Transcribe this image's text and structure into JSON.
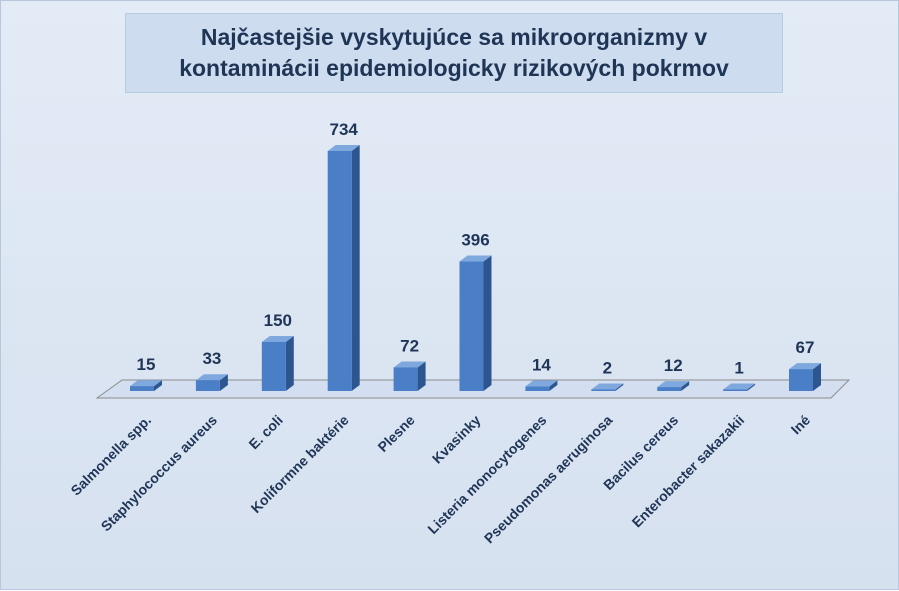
{
  "chart_data": {
    "type": "bar",
    "title_lines": [
      "Najčastejšie vyskytujúce sa mikroorganizmy  v",
      "kontaminácii epidemiologicky rizikových pokrmov"
    ],
    "categories": [
      "Salmonella spp.",
      "Staphylococcus aureus",
      "E. coli",
      "Koliformne baktérie",
      "Plesne",
      "Kvasinky",
      "Listeria monocytogenes",
      "Pseudomonas aeruginosa",
      "Bacilus cereus",
      "Enterobacter sakazakii",
      "Iné"
    ],
    "values": [
      15,
      33,
      150,
      734,
      72,
      396,
      14,
      2,
      12,
      1,
      67
    ],
    "data_labels": [
      "15",
      "33",
      "150",
      "734",
      "72",
      "396",
      "14",
      "2",
      "12",
      "1",
      "67"
    ],
    "ylim": [
      0,
      734
    ],
    "grid": false,
    "legend": "none",
    "bar_style": "3d-column",
    "colors": {
      "bar_front": "#4a7fc8",
      "bar_side": "#2d5690",
      "bar_top": "#7ea8de",
      "floor": "#d3dff0",
      "text": "#1f3556"
    }
  }
}
